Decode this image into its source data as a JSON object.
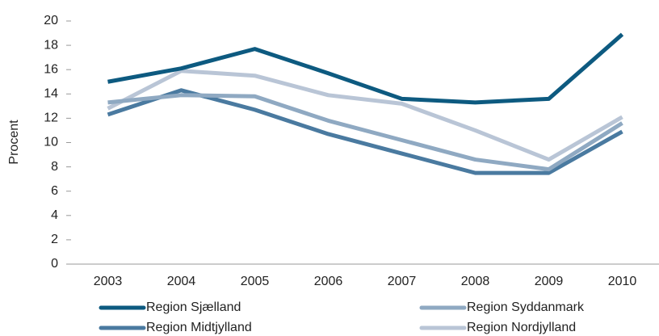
{
  "chart_data": {
    "type": "line",
    "y_label": "Procent",
    "categories": [
      "2003",
      "2004",
      "2005",
      "2006",
      "2007",
      "2008",
      "2009",
      "2010"
    ],
    "series": [
      {
        "name": "Region Sjælland",
        "color": "#0d5a80",
        "values": [
          15.0,
          16.1,
          17.7,
          15.7,
          13.6,
          13.3,
          13.6,
          18.9
        ]
      },
      {
        "name": "Region Syddanmark",
        "color": "#8fa9c2",
        "values": [
          13.3,
          13.9,
          13.8,
          11.8,
          10.2,
          8.6,
          7.8,
          11.6
        ]
      },
      {
        "name": "Region Midtjylland",
        "color": "#4a7aa0",
        "values": [
          12.3,
          14.3,
          12.7,
          10.7,
          9.1,
          7.5,
          7.5,
          10.9
        ]
      },
      {
        "name": "Region Nordjylland",
        "color": "#b9c5d6",
        "values": [
          12.8,
          15.9,
          15.5,
          13.9,
          13.2,
          11.0,
          8.6,
          12.1
        ]
      }
    ],
    "ylim": [
      0,
      20
    ],
    "yticks": [
      0,
      2,
      4,
      6,
      8,
      10,
      12,
      14,
      16,
      18,
      20
    ],
    "grid": false,
    "legend": "bottom"
  }
}
